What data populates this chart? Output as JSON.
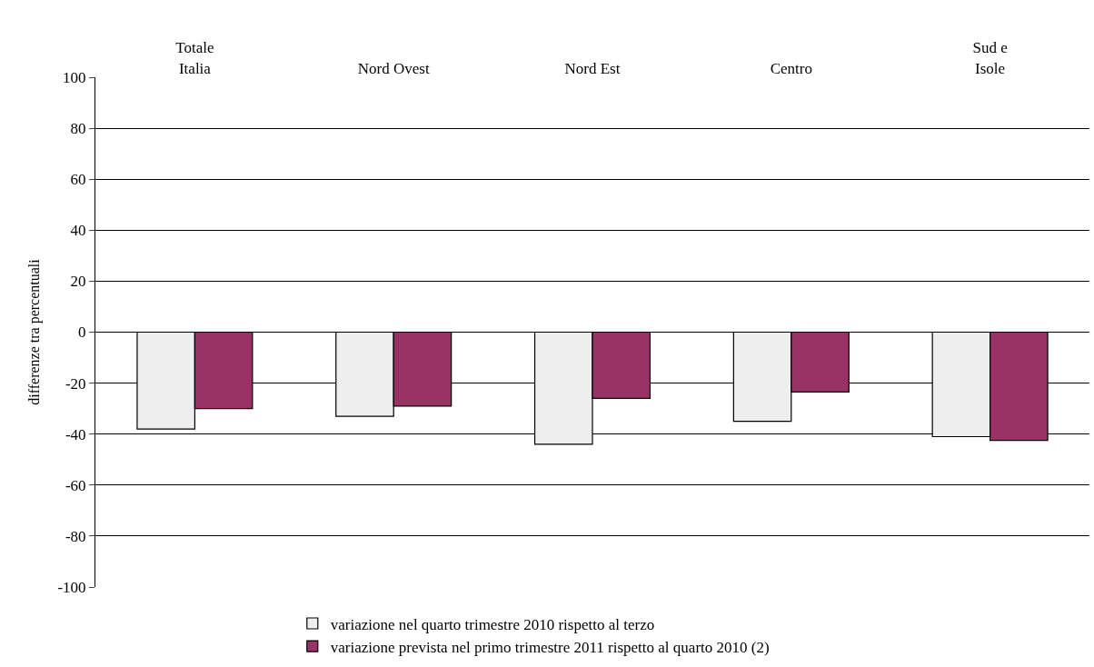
{
  "chart_data": {
    "type": "bar",
    "ylabel": "differenze tra percentuali",
    "categories": [
      "Totale\nItalia",
      "Nord Ovest",
      "Nord Est",
      "Centro",
      "Sud e\nIsole"
    ],
    "series": [
      {
        "name": "variazione nel quarto trimestre 2010 rispetto al terzo",
        "color": "#eeeeee",
        "values": [
          -38,
          -33,
          -44,
          -35,
          -41
        ]
      },
      {
        "name": "variazione prevista nel primo trimestre 2011 rispetto al quarto 2010 (2)",
        "color": "#993366",
        "values": [
          -30,
          -29,
          -26,
          -23.5,
          -42.5
        ]
      }
    ],
    "ylim": [
      -100,
      100
    ],
    "yticks": [
      -100,
      -80,
      -60,
      -40,
      -20,
      0,
      20,
      40,
      60,
      80,
      100
    ],
    "grid": "y",
    "legend": "bottom"
  }
}
